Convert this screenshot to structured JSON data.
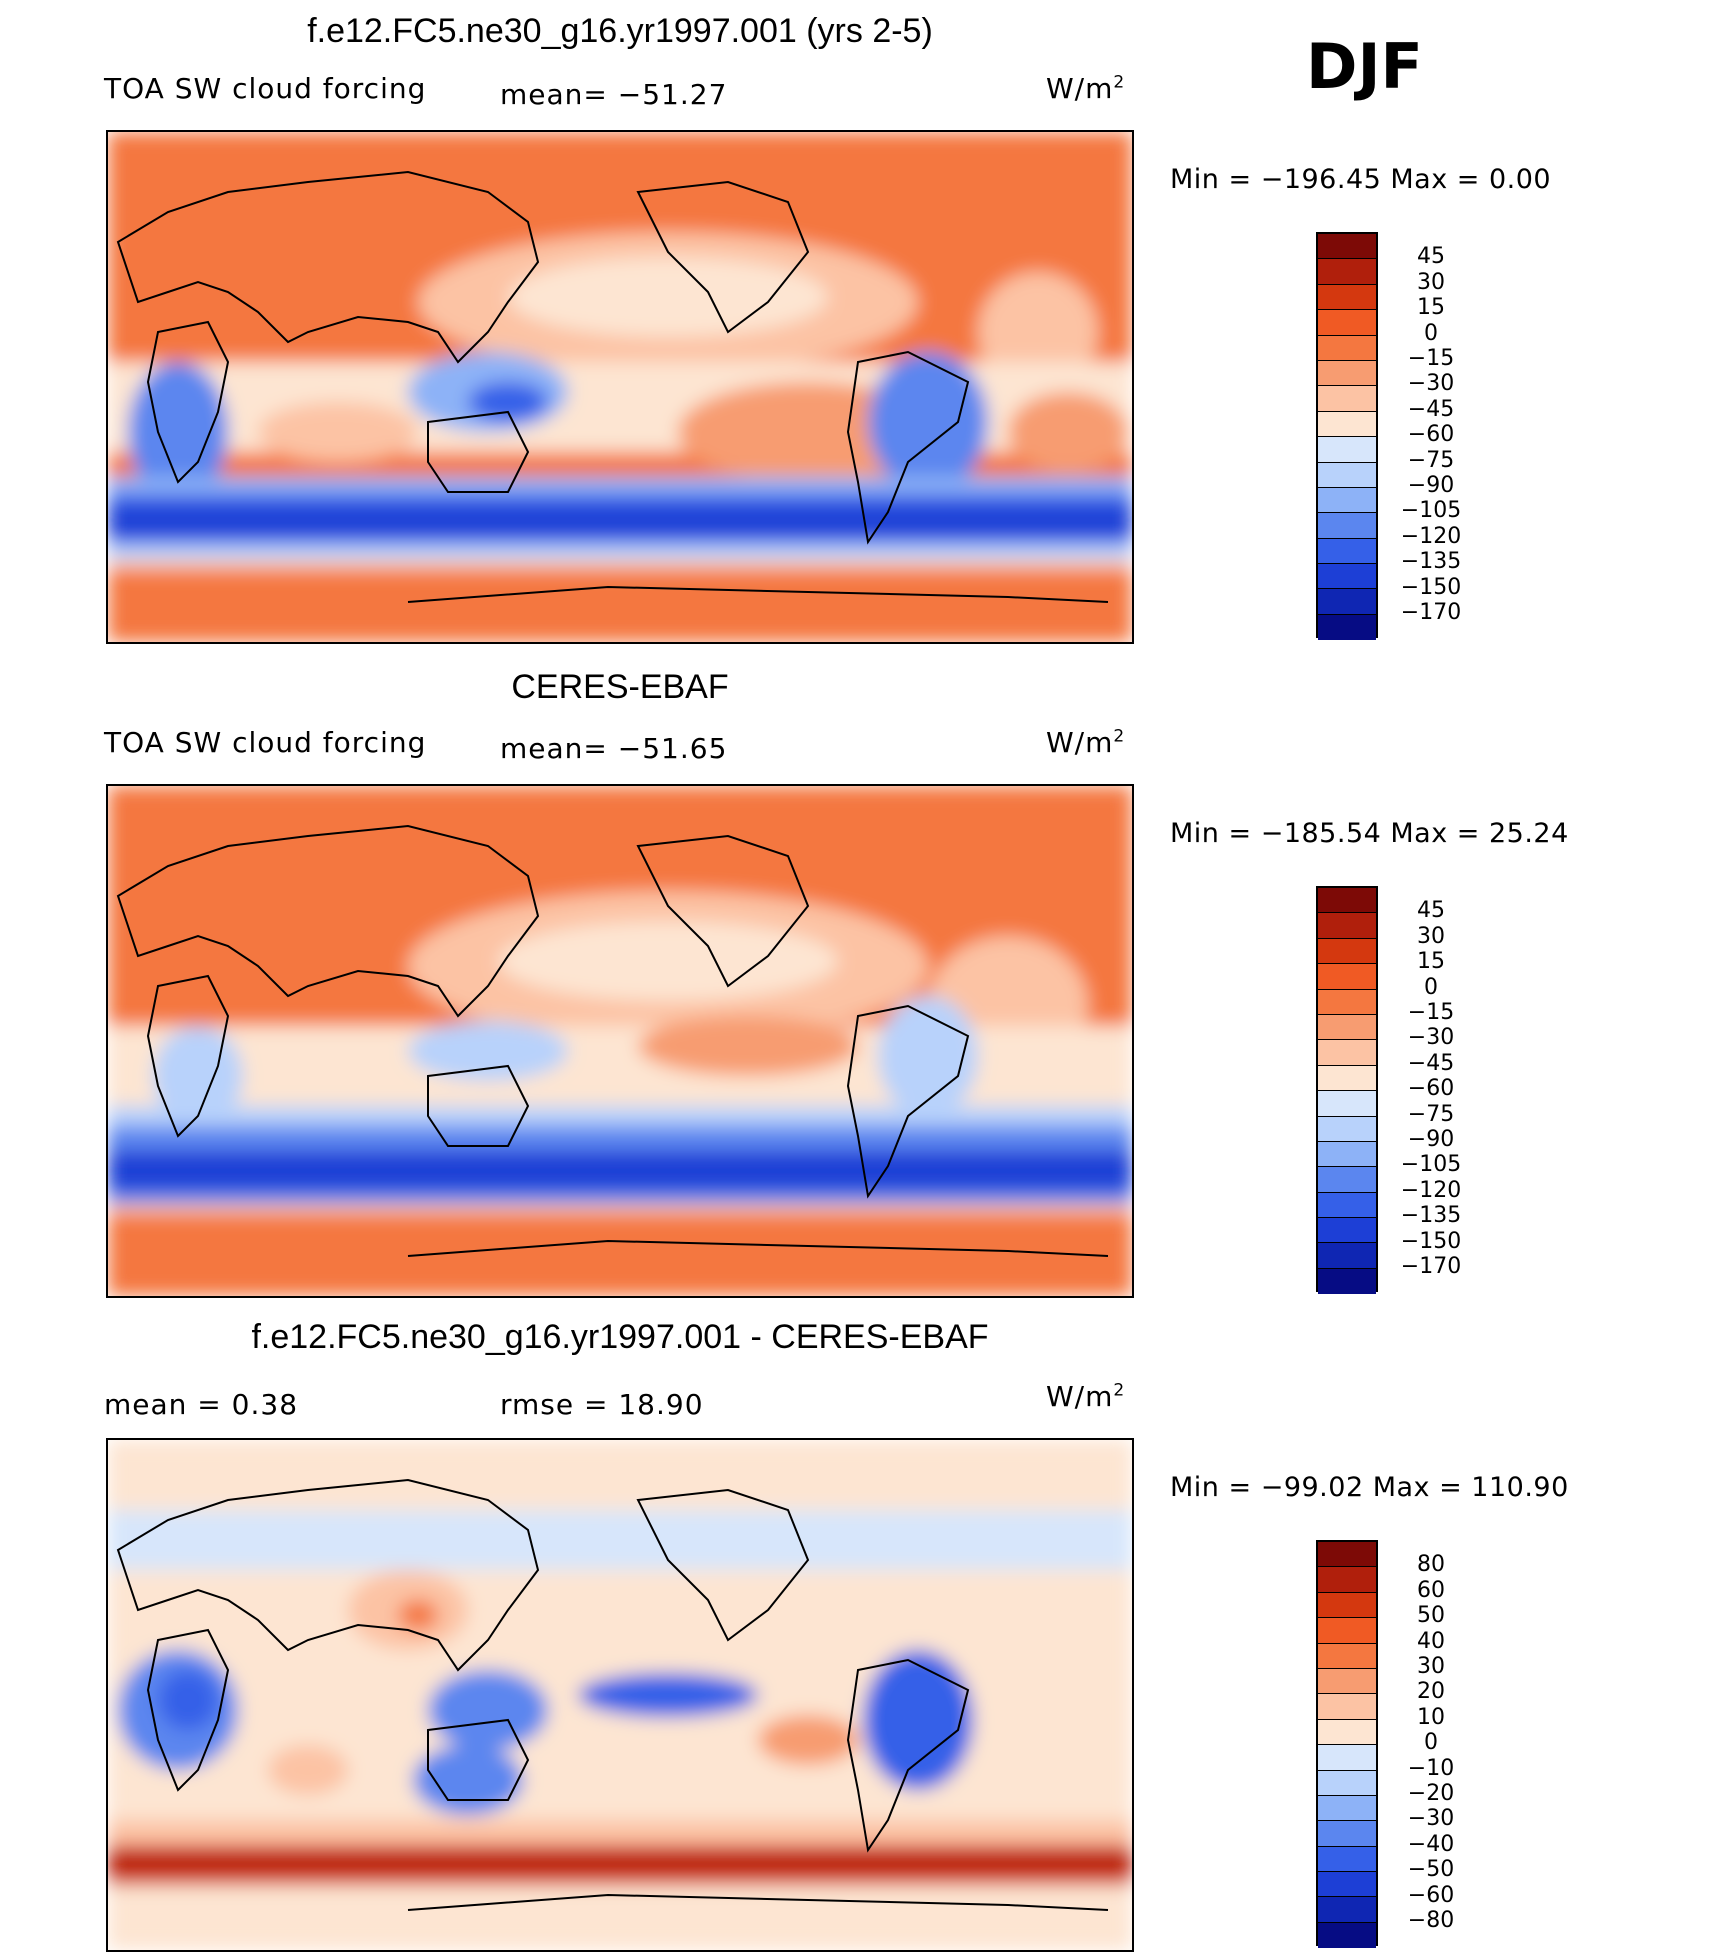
{
  "season": "DJF",
  "unit": "W/m",
  "unit_sup": "2",
  "panels": [
    {
      "title": "f.e12.FC5.ne30_g16.yr1997.001 (yrs 2-5)",
      "left_label": "TOA SW cloud forcing",
      "center_label": "mean=  −51.27",
      "minmax": "Min  =  −196.45  Max  =      0.00",
      "levels": [
        "45",
        "30",
        "15",
        "0",
        "−15",
        "−30",
        "−45",
        "−60",
        "−75",
        "−90",
        "−105",
        "−120",
        "−135",
        "−150",
        "−170"
      ],
      "colors": [
        "#7d0a06",
        "#b01f0c",
        "#d4380f",
        "#f05a24",
        "#f47740",
        "#f79c71",
        "#fcc3a4",
        "#fde5d2",
        "#d7e6fb",
        "#b8d2fb",
        "#8db2f7",
        "#5b86ef",
        "#3560e8",
        "#1d3fd6",
        "#0f26b3",
        "#060c84"
      ]
    },
    {
      "title": "CERES-EBAF",
      "left_label": "TOA SW cloud forcing",
      "center_label": "mean=  −51.65",
      "minmax": "Min  =  −185.54  Max  =    25.24",
      "levels": [
        "45",
        "30",
        "15",
        "0",
        "−15",
        "−30",
        "−45",
        "−60",
        "−75",
        "−90",
        "−105",
        "−120",
        "−135",
        "−150",
        "−170"
      ],
      "colors": [
        "#7d0a06",
        "#b01f0c",
        "#d4380f",
        "#f05a24",
        "#f47740",
        "#f79c71",
        "#fcc3a4",
        "#fde5d2",
        "#d7e6fb",
        "#b8d2fb",
        "#8db2f7",
        "#5b86ef",
        "#3560e8",
        "#1d3fd6",
        "#0f26b3",
        "#060c84"
      ]
    },
    {
      "title": "f.e12.FC5.ne30_g16.yr1997.001 - CERES-EBAF",
      "left_label": "mean  =     0.38",
      "center_label": "rmse  =    18.90",
      "minmax": "Min  =  −99.02  Max  =  110.90",
      "levels": [
        "80",
        "60",
        "50",
        "40",
        "30",
        "20",
        "10",
        "0",
        "−10",
        "−20",
        "−30",
        "−40",
        "−50",
        "−60",
        "−80"
      ],
      "colors": [
        "#7d0a06",
        "#b01f0c",
        "#d4380f",
        "#f05a24",
        "#f47740",
        "#f79c71",
        "#fcc3a4",
        "#fde5d2",
        "#d7e6fb",
        "#b8d2fb",
        "#8db2f7",
        "#5b86ef",
        "#3560e8",
        "#1d3fd6",
        "#0f26b3",
        "#060c84"
      ]
    }
  ]
}
